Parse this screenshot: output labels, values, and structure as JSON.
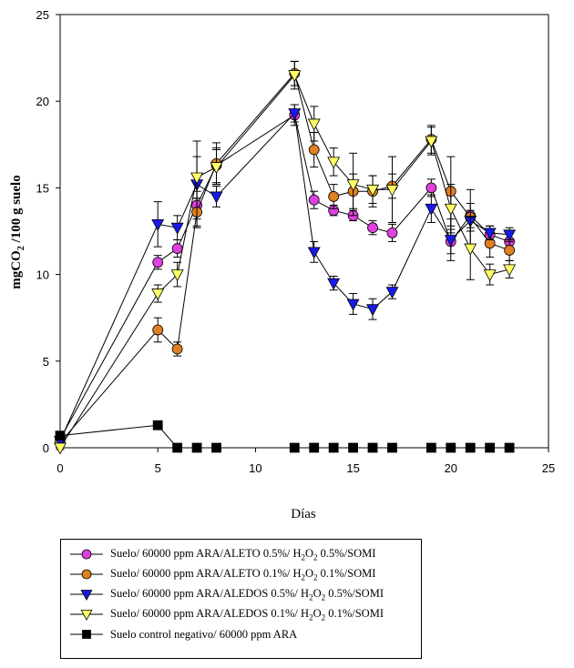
{
  "chart_data": {
    "type": "line",
    "title": "",
    "xlabel": "Días",
    "ylabel": "mg CO₂ /100 g suelo",
    "ylabel_parts": {
      "a": "mg",
      "b": "CO",
      "sub": "2",
      "c": " /100 g suelo"
    },
    "xlim": [
      0,
      25
    ],
    "ylim": [
      0,
      25
    ],
    "xticks": [
      "0",
      "5",
      "10",
      "15",
      "20",
      "25"
    ],
    "yticks": [
      "0",
      "5",
      "10",
      "15",
      "20",
      "25"
    ],
    "grid": false,
    "legend_position": "bottom",
    "series": [
      {
        "name": "Suelo/ 60000 ppm ARA/ALETO 0.5%/ H2O2 0.5%/SOMI",
        "label_parts": [
          "Suelo/ 60000 ppm ARA/ALETO 0.5%/ H",
          "2",
          "O",
          "2",
          " 0.5%/SOMI"
        ],
        "marker": "circle",
        "color": "#e040e0",
        "x": [
          0,
          5,
          6,
          7,
          8,
          12,
          13,
          14,
          15,
          16,
          17,
          19,
          20,
          21,
          22,
          23
        ],
        "y": [
          0.5,
          10.7,
          11.5,
          14.0,
          16.3,
          19.2,
          14.3,
          13.7,
          13.4,
          12.7,
          12.4,
          15.0,
          11.9,
          13.4,
          12.3,
          11.9
        ],
        "err": [
          0.2,
          0.4,
          0.5,
          0.8,
          1.0,
          0.6,
          0.5,
          0.3,
          0.3,
          0.4,
          0.5,
          0.5,
          0.7,
          0.7,
          0.5,
          0.5
        ]
      },
      {
        "name": "Suelo/ 60000 ppm ARA/ALETO 0.1%/ H2O2 0.1%/SOMI",
        "label_parts": [
          "Suelo/ 60000 ppm ARA/ALETO 0.1%/ H",
          "2",
          "O",
          "2",
          " 0.1%/SOMI"
        ],
        "marker": "circle",
        "color": "#e08020",
        "x": [
          0,
          5,
          6,
          7,
          8,
          12,
          13,
          14,
          15,
          16,
          17,
          19,
          20,
          21,
          22,
          23
        ],
        "y": [
          0.3,
          6.8,
          5.7,
          13.6,
          16.4,
          21.6,
          17.2,
          14.5,
          14.8,
          14.8,
          15.1,
          17.8,
          14.8,
          13.3,
          11.8,
          11.4
        ],
        "err": [
          0.2,
          0.7,
          0.4,
          0.8,
          1.2,
          0.7,
          1.0,
          0.7,
          1.0,
          0.9,
          0.7,
          0.8,
          2.0,
          1.6,
          0.8,
          0.6
        ]
      },
      {
        "name": "Suelo/ 60000 ppm ARA/ALEDOS 0.5%/ H2O2 0.5%/SOMI",
        "label_parts": [
          "Suelo/ 60000 ppm ARA/ALEDOS 0.5%/ H",
          "2",
          "O",
          "2",
          " 0.5%/SOMI"
        ],
        "marker": "triangle-down",
        "color": "#1a1ae8",
        "x": [
          0,
          5,
          6,
          7,
          8,
          12,
          13,
          14,
          15,
          16,
          17,
          19,
          20,
          21,
          22,
          23
        ],
        "y": [
          0.4,
          12.9,
          12.7,
          15.2,
          14.5,
          19.3,
          11.3,
          9.5,
          8.3,
          8.0,
          9.0,
          13.8,
          12.0,
          13.1,
          12.4,
          12.3
        ],
        "err": [
          0.2,
          1.3,
          0.7,
          2.5,
          0.6,
          0.5,
          0.6,
          0.4,
          0.6,
          0.6,
          0.4,
          0.8,
          1.2,
          0.6,
          0.4,
          0.4
        ]
      },
      {
        "name": "Suelo/ 60000 ppm ARA/ALEDOS 0.1%/ H2O2 0.1%/SOMI",
        "label_parts": [
          "Suelo/ 60000 ppm ARA/ALEDOS 0.1%/ H",
          "2",
          "O",
          "2",
          " 0.1%/SOMI"
        ],
        "marker": "triangle-down",
        "color": "#ffff66",
        "x": [
          0,
          5,
          6,
          7,
          8,
          12,
          13,
          14,
          15,
          16,
          17,
          19,
          20,
          21,
          22,
          23
        ],
        "y": [
          0.0,
          8.9,
          10.0,
          15.6,
          16.2,
          21.5,
          18.7,
          16.5,
          15.2,
          14.9,
          14.9,
          17.7,
          13.8,
          11.5,
          10.0,
          10.3
        ],
        "err": [
          0.1,
          0.5,
          0.7,
          1.2,
          1.0,
          0.8,
          1.0,
          0.8,
          1.8,
          0.8,
          1.9,
          0.8,
          1.4,
          1.8,
          0.6,
          0.5
        ]
      },
      {
        "name": "Suelo control negativo/ 60000 ppm ARA",
        "label_parts": [
          "Suelo control negativo/ 60000 ppm ARA",
          "",
          "",
          "",
          ""
        ],
        "marker": "square",
        "color": "#000000",
        "x": [
          0,
          5,
          6,
          7,
          8,
          12,
          13,
          14,
          15,
          16,
          17,
          19,
          20,
          21,
          22,
          23
        ],
        "y": [
          0.7,
          1.3,
          0,
          0,
          0,
          0,
          0,
          0,
          0,
          0,
          0,
          0,
          0,
          0,
          0,
          0
        ],
        "err": []
      }
    ]
  }
}
